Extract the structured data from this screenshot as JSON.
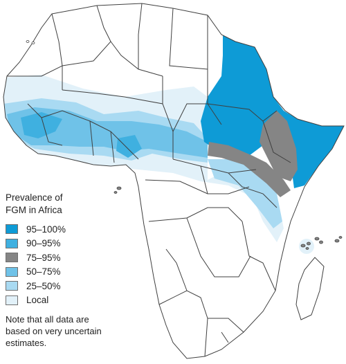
{
  "map": {
    "subject": "Prevalence of FGM in Africa",
    "land_color": "#ffffff",
    "border_color": "#3f3f3f",
    "categories": {
      "p95_100": "#0e9bd6",
      "p90_95": "#3fb0e0",
      "p75_95": "#858585",
      "p50_75": "#6fc2e8",
      "p25_50": "#a9daf2",
      "local": "#e2f1f9"
    }
  },
  "legend": {
    "title_lines": [
      "Prevalence of",
      "FGM in Africa"
    ],
    "items": [
      {
        "label": "95–100%",
        "color": "#0e9bd6"
      },
      {
        "label": "90–95%",
        "color": "#3fb0e0"
      },
      {
        "label": "75–95%",
        "color": "#858585"
      },
      {
        "label": "50–75%",
        "color": "#6fc2e8"
      },
      {
        "label": "25–50%",
        "color": "#a9daf2"
      },
      {
        "label": "Local",
        "color": "#e2f1f9"
      }
    ],
    "note_lines": [
      "Note that all data are",
      "based on very uncertain",
      "estimates."
    ]
  }
}
